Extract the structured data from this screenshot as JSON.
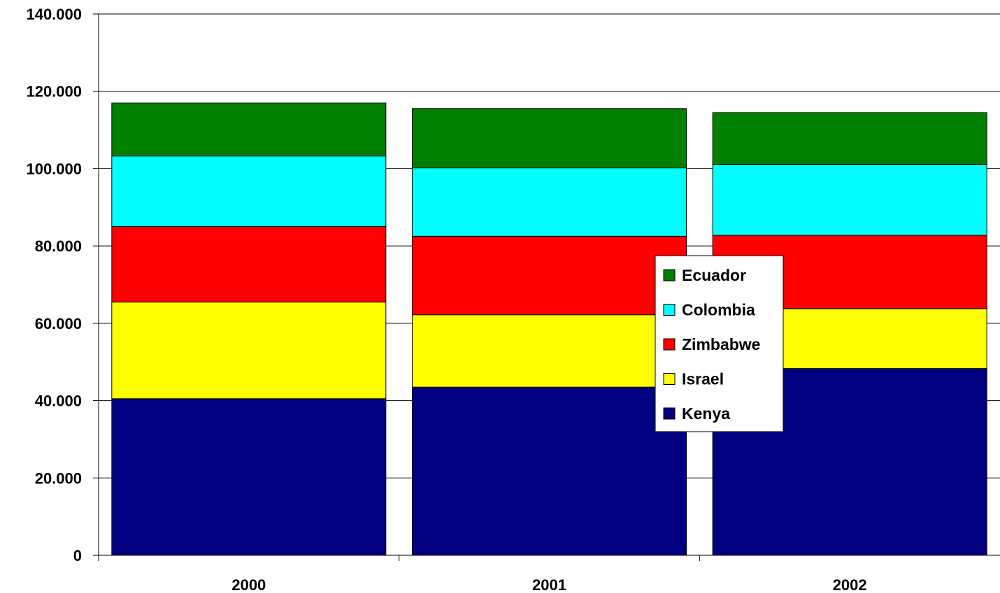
{
  "chart_data": {
    "type": "bar",
    "stacked": true,
    "title": "",
    "xlabel": "",
    "ylabel": "",
    "categories": [
      "2000",
      "2001",
      "2002"
    ],
    "ylim": [
      0,
      140000
    ],
    "yticks": [
      0,
      20000,
      40000,
      60000,
      80000,
      100000,
      120000,
      140000
    ],
    "ytick_labels": [
      "0",
      "20.000",
      "40.000",
      "60.000",
      "80.000",
      "100.000",
      "120.000",
      "140.000"
    ],
    "grid": true,
    "legend_position": "center-right",
    "series": [
      {
        "name": "Kenya",
        "color": "#000080",
        "values": [
          40500,
          43500,
          48300
        ]
      },
      {
        "name": "Israel",
        "color": "#FFFF00",
        "values": [
          25000,
          18700,
          15500
        ]
      },
      {
        "name": "Zimbabwe",
        "color": "#FF0000",
        "values": [
          19500,
          20300,
          19000
        ]
      },
      {
        "name": "Colombia",
        "color": "#00FFFF",
        "values": [
          18300,
          17700,
          18300
        ]
      },
      {
        "name": "Ecuador",
        "color": "#008000",
        "values": [
          13700,
          15300,
          13400
        ]
      }
    ]
  }
}
